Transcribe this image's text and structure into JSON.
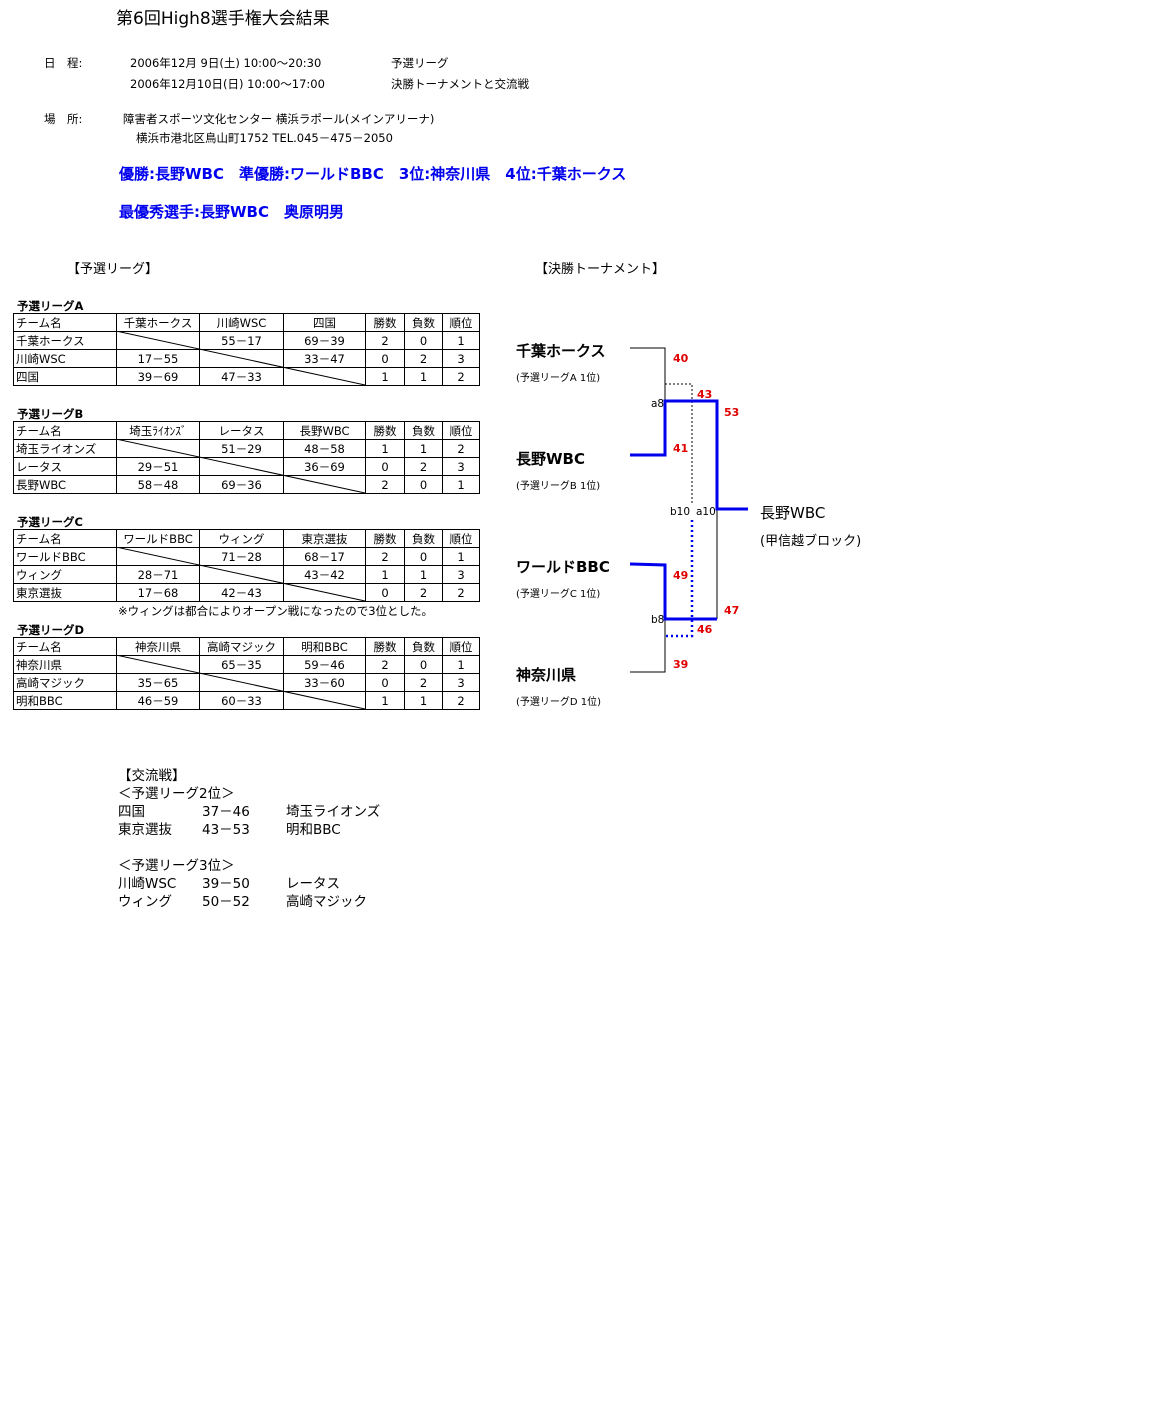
{
  "title": "第6回High8選手権大会結果",
  "schedule": {
    "label": "日　程:",
    "lines": [
      {
        "date": "2006年12月 9日(土) 10:00～20:30",
        "event": "予選リーグ"
      },
      {
        "date": "2006年12月10日(日) 10:00～17:00",
        "event": "決勝トーナメントと交流戦"
      }
    ]
  },
  "venue": {
    "label": "場　所:",
    "name": "障害者スポーツ文化センター 横浜ラポール(メインアリーナ)",
    "address": "横浜市港北区鳥山町1752 TEL.045－475－2050"
  },
  "results": "優勝:長野WBC　準優勝:ワールドBBC　3位:神奈川県　4位:千葉ホークス",
  "mvp": "最優秀選手:長野WBC　奥原明男",
  "league_heading": "【予選リーグ】",
  "tournament_heading": "【決勝トーナメント】",
  "leagues": [
    {
      "title": "予選リーグA",
      "header": [
        "チーム名",
        "千葉ホークス",
        "川崎WSC",
        "四国",
        "勝数",
        "負数",
        "順位"
      ],
      "rows": [
        [
          "千葉ホークス",
          "",
          "55－17",
          "69－39",
          "2",
          "0",
          "1"
        ],
        [
          "川崎WSC",
          "17－55",
          "",
          "33－47",
          "0",
          "2",
          "3"
        ],
        [
          "四国",
          "39－69",
          "47－33",
          "",
          "1",
          "1",
          "2"
        ]
      ]
    },
    {
      "title": "予選リーグB",
      "header": [
        "チーム名",
        "埼玉ﾗｲｵﾝｽﾞ",
        "レータス",
        "長野WBC",
        "勝数",
        "負数",
        "順位"
      ],
      "rows": [
        [
          "埼玉ライオンズ",
          "",
          "51－29",
          "48－58",
          "1",
          "1",
          "2"
        ],
        [
          "レータス",
          "29－51",
          "",
          "36－69",
          "0",
          "2",
          "3"
        ],
        [
          "長野WBC",
          "58－48",
          "69－36",
          "",
          "2",
          "0",
          "1"
        ]
      ]
    },
    {
      "title": "予選リーグC",
      "header": [
        "チーム名",
        "ワールドBBC",
        "ウィング",
        "東京選抜",
        "勝数",
        "負数",
        "順位"
      ],
      "rows": [
        [
          "ワールドBBC",
          "",
          "71－28",
          "68－17",
          "2",
          "0",
          "1"
        ],
        [
          "ウィング",
          "28－71",
          "",
          "43－42",
          "1",
          "1",
          "3"
        ],
        [
          "東京選抜",
          "17－68",
          "42－43",
          "",
          "0",
          "2",
          "2"
        ]
      ],
      "note": "※ウィングは都合によりオープン戦になったので3位とした。"
    },
    {
      "title": "予選リーグD",
      "header": [
        "チーム名",
        "神奈川県",
        "高崎マジック",
        "明和BBC",
        "勝数",
        "負数",
        "順位"
      ],
      "rows": [
        [
          "神奈川県",
          "",
          "65－35",
          "59－46",
          "2",
          "0",
          "1"
        ],
        [
          "高崎マジック",
          "35－65",
          "",
          "33－60",
          "0",
          "2",
          "3"
        ],
        [
          "明和BBC",
          "46－59",
          "60－33",
          "",
          "1",
          "1",
          "2"
        ]
      ]
    }
  ],
  "bracket": {
    "teams": [
      {
        "name": "千葉ホークス",
        "sub": "(予選リーグA 1位)"
      },
      {
        "name": "長野WBC",
        "sub": "(予選リーグB 1位)"
      },
      {
        "name": "ワールドBBC",
        "sub": "(予選リーグC 1位)"
      },
      {
        "name": "神奈川県",
        "sub": "(予選リーグD 1位)"
      }
    ],
    "scores": {
      "chiba_sf": "40",
      "nagano_sf": "41",
      "world_sf": "49",
      "kanagawa_sf": "39",
      "nagano_final": "53",
      "world_final": "47",
      "chiba_3rd": "43",
      "kanagawa_3rd": "46"
    },
    "match_labels": {
      "a8": "a8",
      "b8": "b8",
      "a10": "a10",
      "b10": "b10"
    },
    "winner": {
      "name": "長野WBC",
      "sub": "(甲信越ブロック)"
    },
    "colors": {
      "winner_line": "#0000ee",
      "score": "#e00000"
    }
  },
  "exchange": {
    "heading": "【交流戦】",
    "groups": [
      {
        "title": "＜予選リーグ2位＞",
        "games": [
          [
            "四国",
            "37－46",
            "埼玉ライオンズ"
          ],
          [
            "東京選抜",
            "43－53",
            "明和BBC"
          ]
        ]
      },
      {
        "title": "＜予選リーグ3位＞",
        "games": [
          [
            "川崎WSC",
            "39－50",
            "レータス"
          ],
          [
            "ウィング",
            "50－52",
            "高崎マジック"
          ]
        ]
      }
    ]
  }
}
